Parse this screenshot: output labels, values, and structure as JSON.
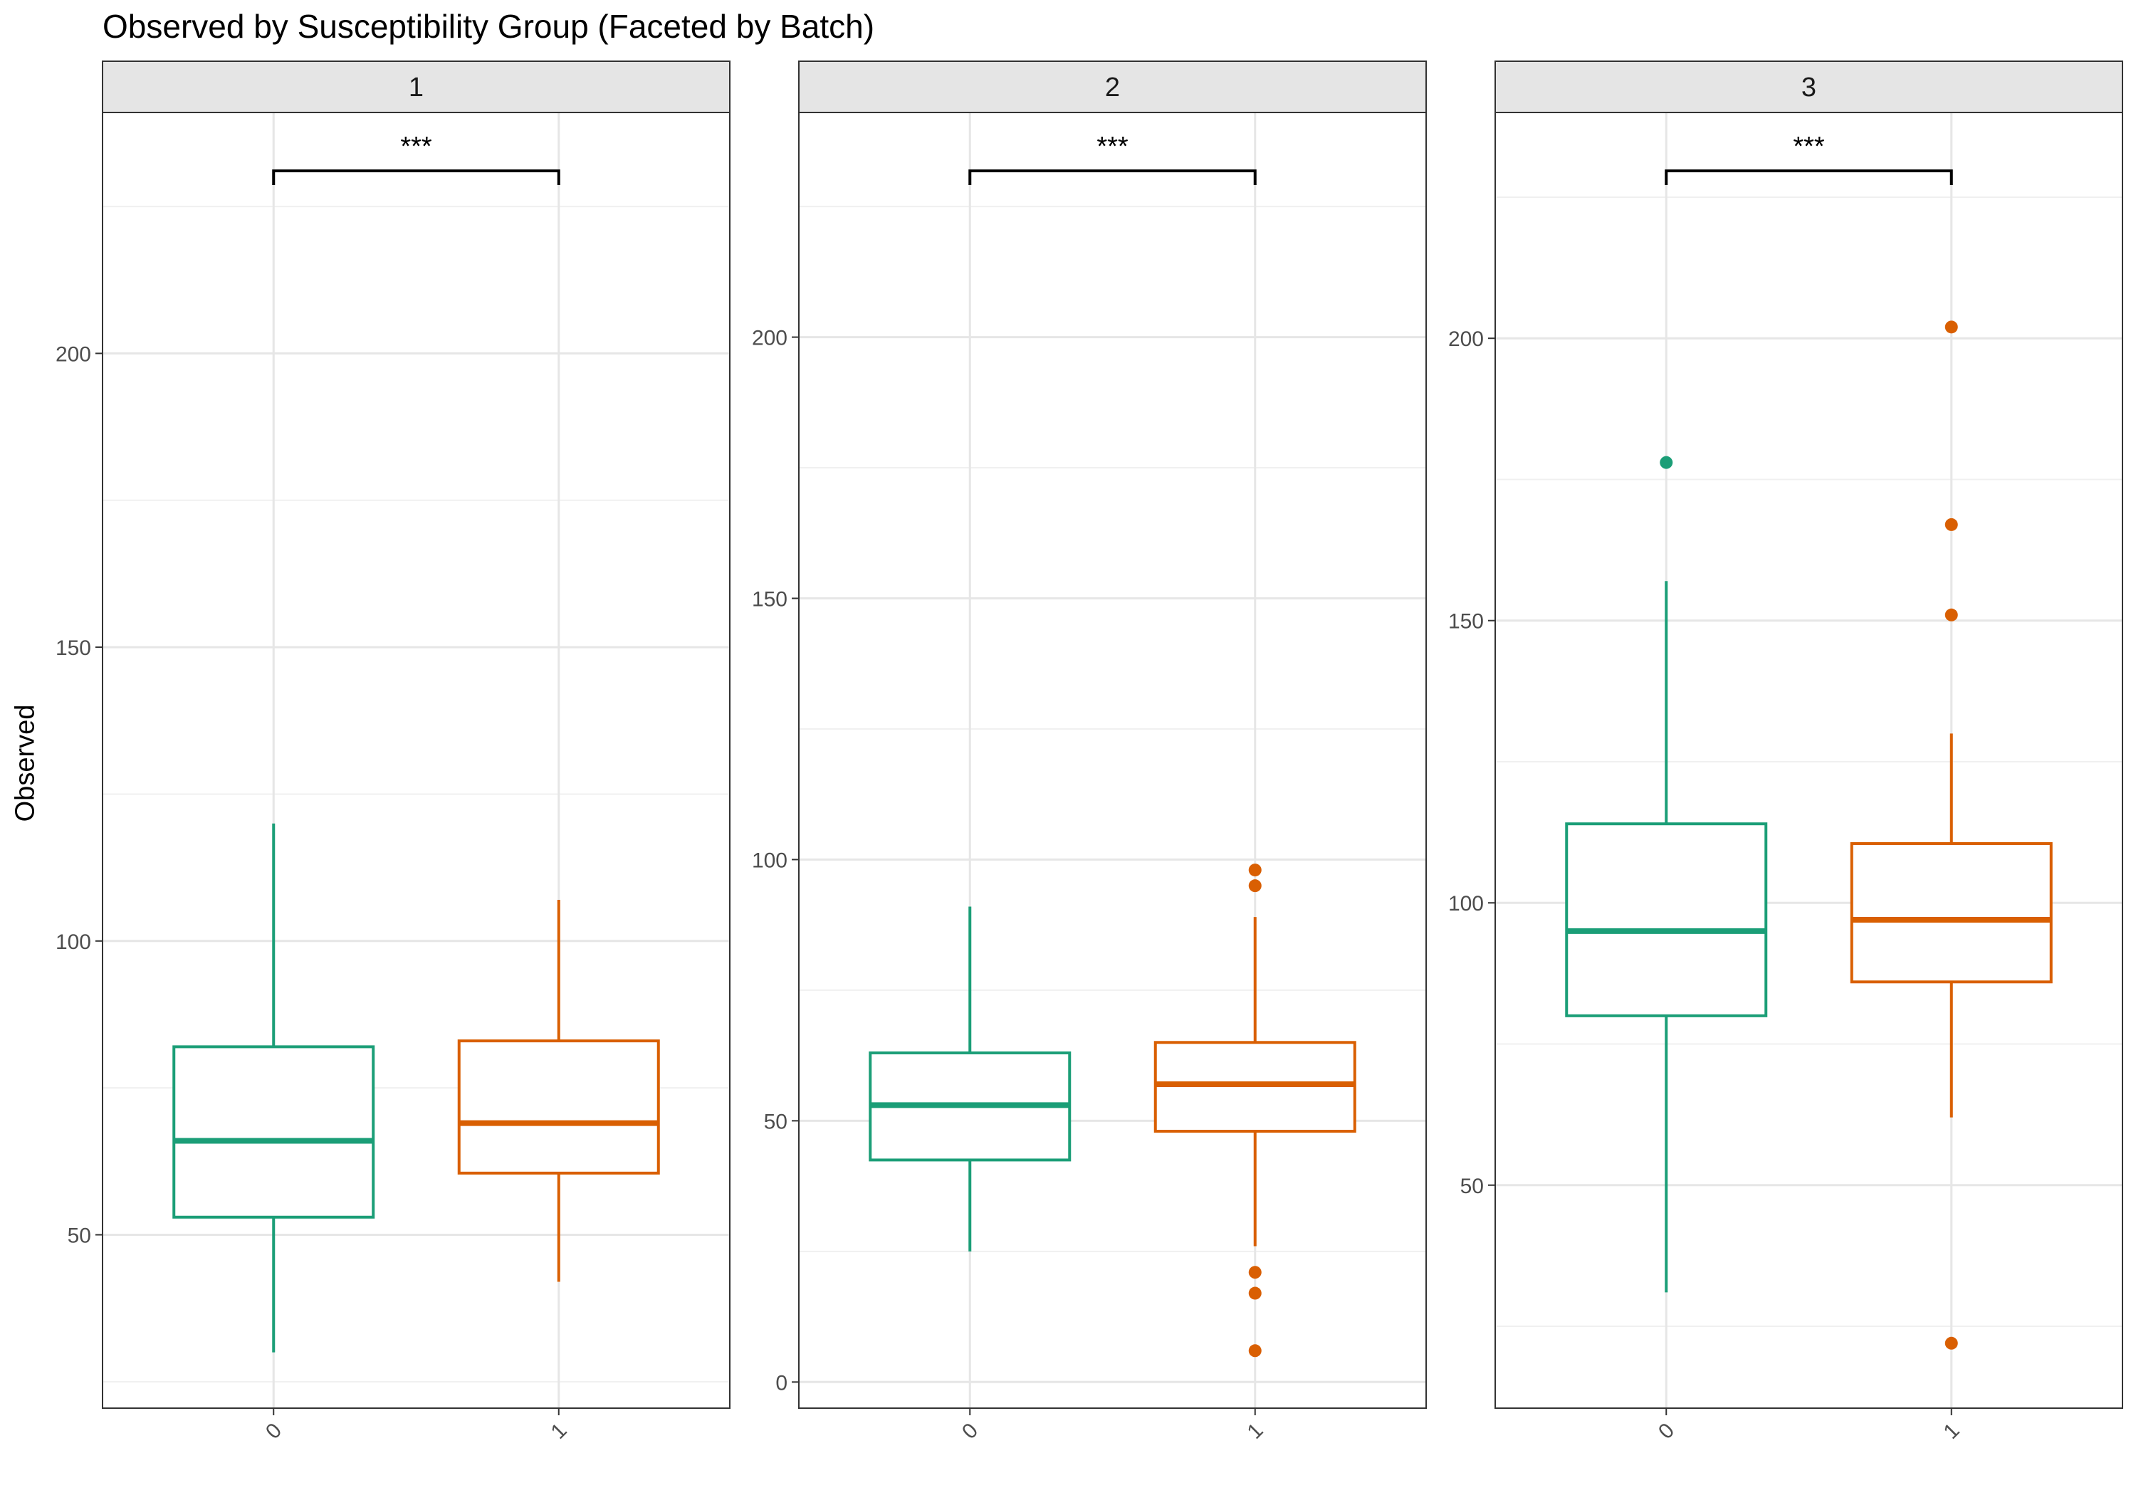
{
  "chart_data": {
    "type": "box",
    "title": "Observed by Susceptibility Group (Faceted by Batch)",
    "ylabel": "Observed",
    "xlabel": "",
    "categories": [
      "0",
      "1"
    ],
    "colors": {
      "0": "#1b9e77",
      "1": "#d95f02"
    },
    "grid": true,
    "significance_label": "***",
    "facets": [
      {
        "label": "1",
        "ylim": [
          20.5,
          241
        ],
        "yticks": [
          50,
          100,
          150,
          200
        ],
        "boxes": [
          {
            "group": "0",
            "min": 30,
            "q1": 53,
            "median": 66,
            "q3": 82,
            "max": 120,
            "outliers": []
          },
          {
            "group": "1",
            "min": 42,
            "q1": 60.5,
            "median": 69,
            "q3": 83,
            "max": 107,
            "outliers": []
          }
        ]
      },
      {
        "label": "2",
        "ylim": [
          -5,
          243
        ],
        "yticks": [
          0,
          50,
          100,
          150,
          200
        ],
        "boxes": [
          {
            "group": "0",
            "min": 25,
            "q1": 42.5,
            "median": 53,
            "q3": 63,
            "max": 91,
            "outliers": []
          },
          {
            "group": "1",
            "min": 26,
            "q1": 48,
            "median": 57,
            "q3": 65,
            "max": 89,
            "outliers": [
              98,
              95,
              21,
              17,
              6
            ]
          }
        ]
      },
      {
        "label": "3",
        "ylim": [
          10.5,
          240
        ],
        "yticks": [
          50,
          100,
          150,
          200
        ],
        "boxes": [
          {
            "group": "0",
            "min": 31,
            "q1": 80,
            "median": 95,
            "q3": 114,
            "max": 157,
            "outliers": [
              178
            ]
          },
          {
            "group": "1",
            "min": 62,
            "q1": 86,
            "median": 97,
            "q3": 110.5,
            "max": 130,
            "outliers": [
              202,
              167,
              151,
              22
            ]
          }
        ]
      }
    ]
  }
}
